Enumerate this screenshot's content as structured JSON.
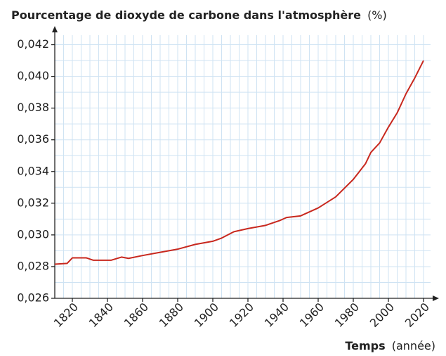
{
  "chart_data": {
    "type": "line",
    "title": "Pourcentage de dioxyde de carbone dans l'atmosphère",
    "title_unit": "(%)",
    "xlabel": "Temps",
    "xlabel_unit": "(année)",
    "x": [
      1810,
      1817,
      1820,
      1828,
      1832,
      1836,
      1842,
      1848,
      1852,
      1860,
      1870,
      1880,
      1890,
      1900,
      1905,
      1912,
      1920,
      1930,
      1938,
      1942,
      1950,
      1960,
      1970,
      1980,
      1987,
      1990,
      1995,
      2000,
      2005,
      2010,
      2015,
      2020
    ],
    "series": [
      {
        "color": "#c8281e",
        "values": [
          0.02815,
          0.0282,
          0.02855,
          0.02855,
          0.0284,
          0.0284,
          0.0284,
          0.0286,
          0.02852,
          0.0287,
          0.0289,
          0.0291,
          0.0294,
          0.0296,
          0.0298,
          0.0302,
          0.0304,
          0.0306,
          0.0309,
          0.0311,
          0.0312,
          0.0317,
          0.0324,
          0.0335,
          0.0345,
          0.0352,
          0.0358,
          0.0368,
          0.0377,
          0.0389,
          0.0399,
          0.041
        ]
      }
    ],
    "xlim": [
      1810,
      2024
    ],
    "ylim": [
      0.026,
      0.0426
    ],
    "xticks": [
      1820,
      1840,
      1860,
      1880,
      1900,
      1920,
      1940,
      1960,
      1980,
      2000,
      2020
    ],
    "yticks": [
      {
        "value": 0.026,
        "label": "0,026"
      },
      {
        "value": 0.028,
        "label": "0,028"
      },
      {
        "value": 0.03,
        "label": "0,030"
      },
      {
        "value": 0.032,
        "label": "0,032"
      },
      {
        "value": 0.034,
        "label": "0,034"
      },
      {
        "value": 0.036,
        "label": "0,036"
      },
      {
        "value": 0.038,
        "label": "0,038"
      },
      {
        "value": 0.04,
        "label": "0,040"
      },
      {
        "value": 0.042,
        "label": "0,042"
      }
    ],
    "grid": true,
    "grid_step": {
      "x": 5,
      "y": 0.001
    }
  }
}
